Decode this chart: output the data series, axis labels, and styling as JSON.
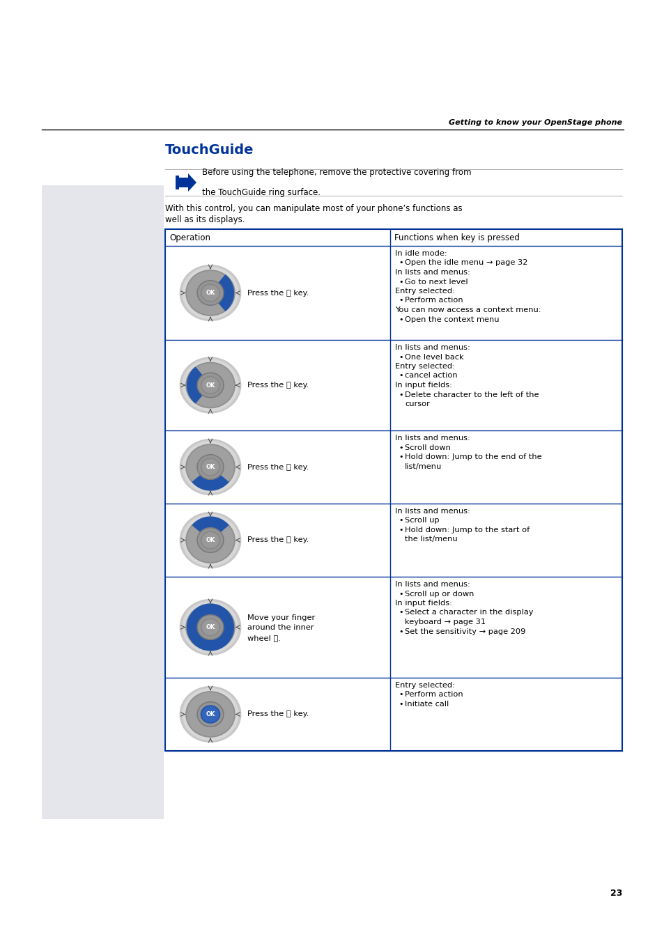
{
  "page_bg": "#ffffff",
  "header_text": "Getting to know your OpenStage phone",
  "sidebar_color": "#e5e5ec",
  "title": "TouchGuide",
  "title_color": "#003399",
  "note_text1": "Before using the telephone, remove the protective covering from",
  "note_text2": "the TouchGuide ring surface.",
  "body_text1": "With this control, you can manipulate most of your phone’s functions as",
  "body_text2": "well as its displays.",
  "col1_header": "Operation",
  "col2_header": "Functions when key is pressed",
  "table_border_color": "#003399",
  "rows": [
    {
      "op_label": "Press the",
      "op_key": "Ⓣ",
      "op_suffix": " key.",
      "op_extra": "",
      "func_lines": [
        [
          "h",
          "In idle mode:"
        ],
        [
          "b",
          "Open the idle menu → page 32"
        ],
        [
          "h",
          "In lists and menus:"
        ],
        [
          "b",
          "Go to next level"
        ],
        [
          "h",
          "Entry selected:"
        ],
        [
          "b",
          "Perform action"
        ],
        [
          "h",
          "You can now access a context menu:"
        ],
        [
          "b",
          "Open the context menu"
        ]
      ],
      "highlight": "right"
    },
    {
      "op_label": "Press the",
      "op_key": "Ⓡ",
      "op_suffix": " key.",
      "op_extra": "",
      "func_lines": [
        [
          "h",
          "In lists and menus:"
        ],
        [
          "b",
          "One level back"
        ],
        [
          "h",
          "Entry selected:"
        ],
        [
          "b",
          "cancel action"
        ],
        [
          "h",
          "In input fields:"
        ],
        [
          "b",
          "Delete character to the left of the"
        ],
        [
          "c",
          "cursor"
        ]
      ],
      "highlight": "left"
    },
    {
      "op_label": "Press the",
      "op_key": "Ⓢ",
      "op_suffix": " key.",
      "op_extra": "",
      "func_lines": [
        [
          "h",
          "In lists and menus:"
        ],
        [
          "b",
          "Scroll down"
        ],
        [
          "b",
          "Hold down: Jump to the end of the"
        ],
        [
          "c",
          "list/menu"
        ]
      ],
      "highlight": "bottom"
    },
    {
      "op_label": "Press the",
      "op_key": "Ⓠ",
      "op_suffix": " key.",
      "op_extra": "",
      "func_lines": [
        [
          "h",
          "In lists and menus:"
        ],
        [
          "b",
          "Scroll up"
        ],
        [
          "b",
          "Hold down: Jump to the start of"
        ],
        [
          "c",
          "the list/menu"
        ]
      ],
      "highlight": "top"
    },
    {
      "op_label": "Move your finger",
      "op_key": "",
      "op_suffix": "",
      "op_extra": "around the inner\nwheel Ⓞ.",
      "func_lines": [
        [
          "h",
          "In lists and menus:"
        ],
        [
          "b",
          "Scroll up or down"
        ],
        [
          "h",
          "In input fields:"
        ],
        [
          "b",
          "Select a character in the display"
        ],
        [
          "c",
          "keyboard → page 31"
        ],
        [
          "b",
          "Set the sensitivity → page 209"
        ]
      ],
      "highlight": "ring"
    },
    {
      "op_label": "Press the",
      "op_key": "Ⓞ",
      "op_suffix": " key.",
      "op_extra": "",
      "func_lines": [
        [
          "h",
          "Entry selected:"
        ],
        [
          "b",
          "Perform action"
        ],
        [
          "b",
          "Initiate call"
        ]
      ],
      "highlight": "center"
    }
  ],
  "page_number": "23"
}
